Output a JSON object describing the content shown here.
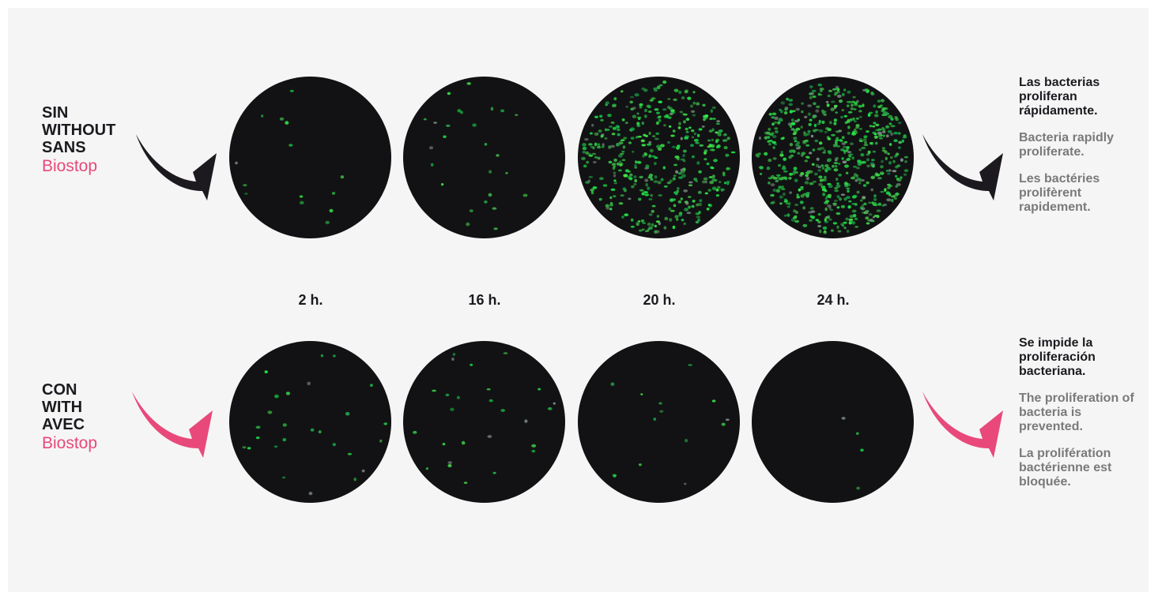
{
  "colors": {
    "dark": "#1c1a1f",
    "accent": "#e8497a",
    "dish": "#121214",
    "bacteria": "#2ee05a",
    "secondary_text": "#7a7a7a"
  },
  "rows": {
    "without": {
      "label_es": "SIN",
      "label_en": "WITHOUT",
      "label_fr": "SANS",
      "brand": "Biostop",
      "arrow_color": "#1c1a1f",
      "description": {
        "es": "Las bacterias proliferan rápidamente.",
        "en": "Bacteria rapidly proliferate.",
        "fr": "Les bactéries prolifèrent rapidement."
      },
      "dishes": [
        {
          "time": "2 h.",
          "density": "very sparse"
        },
        {
          "time": "16 h.",
          "density": "sparse"
        },
        {
          "time": "20 h.",
          "density": "dense"
        },
        {
          "time": "24 h.",
          "density": "very dense"
        }
      ]
    },
    "with": {
      "label_es": "CON",
      "label_en": "WITH",
      "label_fr": "AVEC",
      "brand": "Biostop",
      "arrow_color": "#e8497a",
      "description": {
        "es": "Se impide la proliferación bacteriana.",
        "en": "The proliferation of bacteria is prevented.",
        "fr": "La prolifération bactérienne est bloquée."
      },
      "dishes": [
        {
          "time": "2 h.",
          "density": "sparse"
        },
        {
          "time": "16 h.",
          "density": "sparse"
        },
        {
          "time": "20 h.",
          "density": "very sparse"
        },
        {
          "time": "24 h.",
          "density": "almost none"
        }
      ]
    }
  },
  "timepoints": [
    "2 h.",
    "16 h.",
    "20 h.",
    "24 h."
  ]
}
